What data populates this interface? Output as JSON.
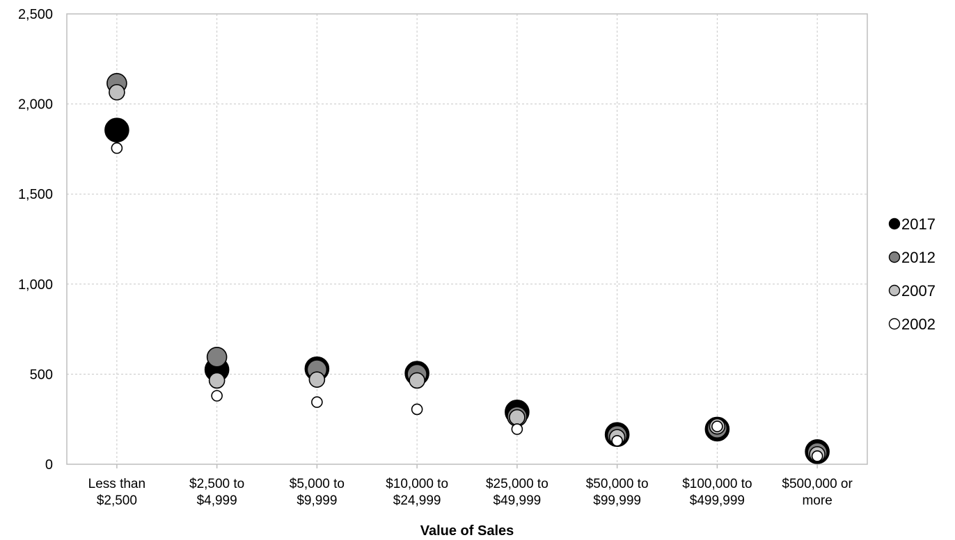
{
  "chart_data": {
    "type": "scatter",
    "title": "",
    "xlabel": "Value of Sales",
    "ylabel": "",
    "ylim": [
      0,
      2500
    ],
    "yticks": [
      0,
      500,
      1000,
      1500,
      2000,
      2500
    ],
    "ytick_labels": [
      "0",
      "500",
      "1,000",
      "1,500",
      "2,000",
      "2,500"
    ],
    "grid": true,
    "legend_position": "right",
    "categories": [
      [
        "Less than",
        "$2,500"
      ],
      [
        "$2,500 to",
        "$4,999"
      ],
      [
        "$5,000 to",
        "$9,999"
      ],
      [
        "$10,000 to",
        "$24,999"
      ],
      [
        "$25,000 to",
        "$49,999"
      ],
      [
        "$50,000 to",
        "$99,999"
      ],
      [
        "$100,000 to",
        "$499,999"
      ],
      [
        "$500,000 or",
        "more"
      ]
    ],
    "series": [
      {
        "name": "2017",
        "color": "#000000",
        "values": [
          1855,
          525,
          530,
          505,
          290,
          165,
          195,
          70
        ]
      },
      {
        "name": "2012",
        "color": "#808080",
        "values": [
          2115,
          595,
          525,
          500,
          265,
          160,
          200,
          65
        ]
      },
      {
        "name": "2007",
        "color": "#c0c0c0",
        "values": [
          2065,
          465,
          470,
          465,
          260,
          150,
          210,
          55
        ]
      },
      {
        "name": "2002",
        "color": "#ffffff",
        "values": [
          1755,
          380,
          345,
          305,
          195,
          130,
          210,
          45
        ]
      }
    ]
  }
}
